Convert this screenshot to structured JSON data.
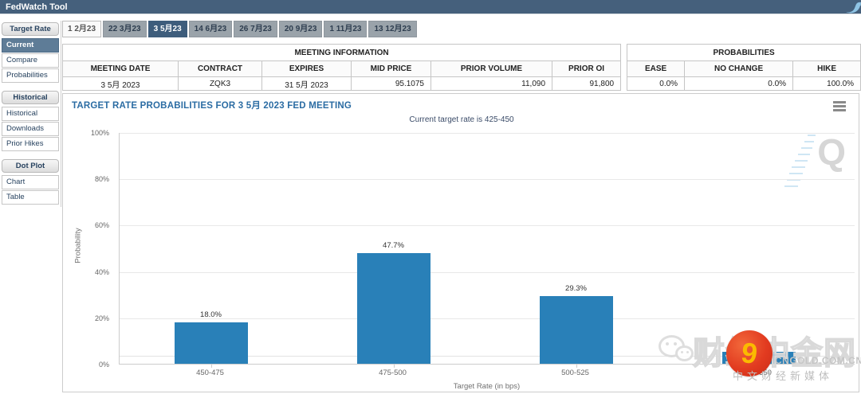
{
  "app": {
    "title": "FedWatch Tool"
  },
  "tabs": {
    "items": [
      "1 2月23",
      "22 3月23",
      "3 5月23",
      "14 6月23",
      "26 7月23",
      "20 9月23",
      "1 11月23",
      "13 12月23"
    ],
    "selected": "3 5月23"
  },
  "sidebar": {
    "target_rate": {
      "header": "Target Rate",
      "items": [
        "Current",
        "Compare",
        "Probabilities"
      ],
      "selected": "Current"
    },
    "historical": {
      "header": "Historical",
      "items": [
        "Historical",
        "Downloads",
        "Prior Hikes"
      ]
    },
    "dot_plot": {
      "header": "Dot Plot",
      "items": [
        "Chart",
        "Table"
      ]
    }
  },
  "meeting_info": {
    "title": "MEETING INFORMATION",
    "columns": [
      "MEETING DATE",
      "CONTRACT",
      "EXPIRES",
      "MID PRICE",
      "PRIOR VOLUME",
      "PRIOR OI"
    ],
    "row": [
      "3 5月 2023",
      "ZQK3",
      "31 5月 2023",
      "95.1075",
      "11,090",
      "91,800"
    ]
  },
  "probabilities": {
    "title": "PROBABILITIES",
    "columns": [
      "EASE",
      "NO CHANGE",
      "HIKE"
    ],
    "row": [
      "0.0%",
      "0.0%",
      "100.0%"
    ]
  },
  "chart_data": {
    "type": "bar",
    "title": "TARGET RATE PROBABILITIES FOR 3 5月 2023 FED MEETING",
    "subtitle": "Current target rate is 425-450",
    "categories": [
      "450-475",
      "475-500",
      "500-525",
      "525-550"
    ],
    "values": [
      18.0,
      47.7,
      29.3,
      5.0
    ],
    "bar_labels": [
      "18.0%",
      "47.7%",
      "29.3%",
      ""
    ],
    "xlabel": "Target Rate (in bps)",
    "ylabel": "Probability",
    "ylim": [
      0,
      100
    ],
    "yticks": [
      "0%",
      "20%",
      "40%",
      "60%",
      "80%",
      "100%"
    ],
    "grid": true,
    "legend": "none",
    "bar_color": "#2980B8"
  },
  "quikstrike_watermark": "Q",
  "watermark": {
    "brand": "财经中金网",
    "logo_glyph": "9",
    "domain": "CNGOLD.COM.CN",
    "tagline": "中文财经新媒体"
  },
  "colors": {
    "topbar": "#45607C",
    "selected_tab": "#3E5D7C",
    "selected_sidebar_item": "#5E7C97",
    "bar": "#2980B8",
    "chart_title": "#2B6CA3"
  }
}
